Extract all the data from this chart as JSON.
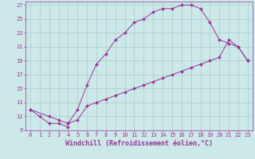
{
  "xlabel": "Windchill (Refroidissement éolien,°C)",
  "bg_color": "#cce8e8",
  "grid_color": "#aacccc",
  "line_color": "#993399",
  "spine_color": "#993399",
  "curve1_x": [
    0,
    1,
    2,
    3,
    4,
    4,
    5,
    6,
    7,
    8,
    9,
    10,
    11,
    12,
    13,
    14,
    15,
    16,
    17,
    18,
    19,
    20,
    21,
    22,
    23
  ],
  "curve1_y": [
    12,
    11,
    10,
    10,
    9.5,
    10,
    12,
    15.5,
    18.5,
    20,
    22,
    23,
    24.5,
    25,
    26,
    26.5,
    26.5,
    27,
    27,
    26.5,
    24.5,
    22,
    21.5,
    21,
    19
  ],
  "curve2_x": [
    0,
    2,
    3,
    4,
    5,
    6,
    7,
    8,
    9,
    10,
    11,
    12,
    13,
    14,
    15,
    16,
    17,
    18,
    19,
    20,
    21,
    22,
    23
  ],
  "curve2_y": [
    12,
    11,
    10.5,
    10,
    10.5,
    12.5,
    13,
    13.5,
    14,
    14.5,
    15,
    15.5,
    16,
    16.5,
    17,
    17.5,
    18,
    18.5,
    19,
    19.5,
    22,
    21,
    19
  ],
  "xlim": [
    -0.5,
    23.5
  ],
  "ylim": [
    9,
    27.5
  ],
  "xticks": [
    0,
    1,
    2,
    3,
    4,
    5,
    6,
    7,
    8,
    9,
    10,
    11,
    12,
    13,
    14,
    15,
    16,
    17,
    18,
    19,
    20,
    21,
    22,
    23
  ],
  "yticks": [
    9,
    11,
    13,
    15,
    17,
    19,
    21,
    23,
    25,
    27
  ],
  "fontsize_label": 6,
  "fontsize_tick": 5,
  "marker": "D",
  "marker_size": 2.0,
  "linewidth": 0.7
}
